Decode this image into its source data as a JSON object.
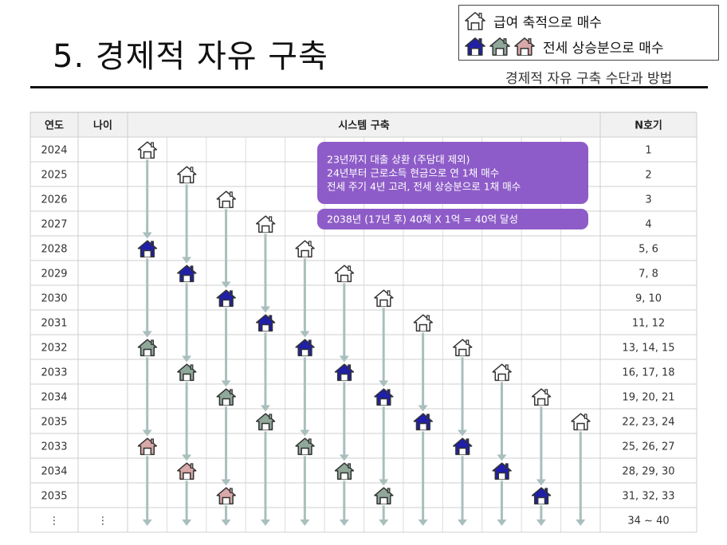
{
  "header": {
    "title": "5. 경제적 자유 구축",
    "subtitle": "경제적 자유 구축 수단과 방법"
  },
  "legend": {
    "item1": "급여 축적으로 매수",
    "item2": "전세 상승분으로 매수"
  },
  "colors": {
    "outline_house": "#333333",
    "navy_house": "#1f1fa8",
    "gray_house": "#8fa89a",
    "pink_house": "#d9a8a8",
    "arrow": "#a9bfbd",
    "callout": "#8e5cc8",
    "header_bg": "#f1f1f1"
  },
  "table": {
    "headers": [
      "연도",
      "나이",
      "시스템 구축",
      "N호기"
    ],
    "rows": [
      {
        "year": "2024",
        "age": "",
        "n": "1"
      },
      {
        "year": "2025",
        "age": "",
        "n": "2"
      },
      {
        "year": "2026",
        "age": "",
        "n": "3"
      },
      {
        "year": "2027",
        "age": "",
        "n": "4"
      },
      {
        "year": "2028",
        "age": "",
        "n": "5, 6"
      },
      {
        "year": "2029",
        "age": "",
        "n": "7, 8"
      },
      {
        "year": "2030",
        "age": "",
        "n": "9, 10"
      },
      {
        "year": "2031",
        "age": "",
        "n": "11, 12"
      },
      {
        "year": "2032",
        "age": "",
        "n": "13, 14, 15"
      },
      {
        "year": "2033",
        "age": "",
        "n": "16, 17, 18"
      },
      {
        "year": "2034",
        "age": "",
        "n": "19, 20, 21"
      },
      {
        "year": "2035",
        "age": "",
        "n": "22, 23, 24"
      },
      {
        "year": "2033",
        "age": "",
        "n": "25, 26, 27"
      },
      {
        "year": "2034",
        "age": "",
        "n": "28, 29, 30"
      },
      {
        "year": "2035",
        "age": "",
        "n": "31, 32, 33"
      },
      {
        "year": "⋮",
        "age": "⋮",
        "n": "34 ~ 40"
      }
    ]
  },
  "callouts": [
    {
      "lines": [
        "23년까지 대출 상환 (주담대 제외)",
        "24년부터 근로소득 현금으로 연 1채 매수",
        "전세 주기 4년 고려, 전세 상승분으로 1채 매수"
      ]
    },
    {
      "lines": [
        "2038년 (17년 후) 40채 X 1억 = 40억 달성"
      ]
    }
  ],
  "columns": [
    {
      "houses": [
        [
          0,
          "outline"
        ],
        [
          4,
          "navy"
        ],
        [
          8,
          "gray"
        ],
        [
          12,
          "pink"
        ]
      ]
    },
    {
      "houses": [
        [
          1,
          "outline"
        ],
        [
          5,
          "navy"
        ],
        [
          9,
          "gray"
        ],
        [
          13,
          "pink"
        ]
      ]
    },
    {
      "houses": [
        [
          2,
          "outline"
        ],
        [
          6,
          "navy"
        ],
        [
          10,
          "gray"
        ],
        [
          14,
          "pink"
        ]
      ]
    },
    {
      "houses": [
        [
          3,
          "outline"
        ],
        [
          7,
          "navy"
        ],
        [
          11,
          "gray"
        ]
      ]
    },
    {
      "houses": [
        [
          4,
          "outline"
        ],
        [
          8,
          "navy"
        ],
        [
          12,
          "gray"
        ]
      ]
    },
    {
      "houses": [
        [
          5,
          "outline"
        ],
        [
          9,
          "navy"
        ],
        [
          13,
          "gray"
        ]
      ]
    },
    {
      "houses": [
        [
          6,
          "outline"
        ],
        [
          10,
          "navy"
        ],
        [
          14,
          "gray"
        ]
      ]
    },
    {
      "houses": [
        [
          7,
          "outline"
        ],
        [
          11,
          "navy"
        ]
      ]
    },
    {
      "houses": [
        [
          8,
          "outline"
        ],
        [
          12,
          "navy"
        ]
      ]
    },
    {
      "houses": [
        [
          9,
          "outline"
        ],
        [
          13,
          "navy"
        ]
      ]
    },
    {
      "houses": [
        [
          10,
          "outline"
        ],
        [
          14,
          "navy"
        ]
      ]
    },
    {
      "houses": [
        [
          11,
          "outline"
        ]
      ]
    }
  ]
}
